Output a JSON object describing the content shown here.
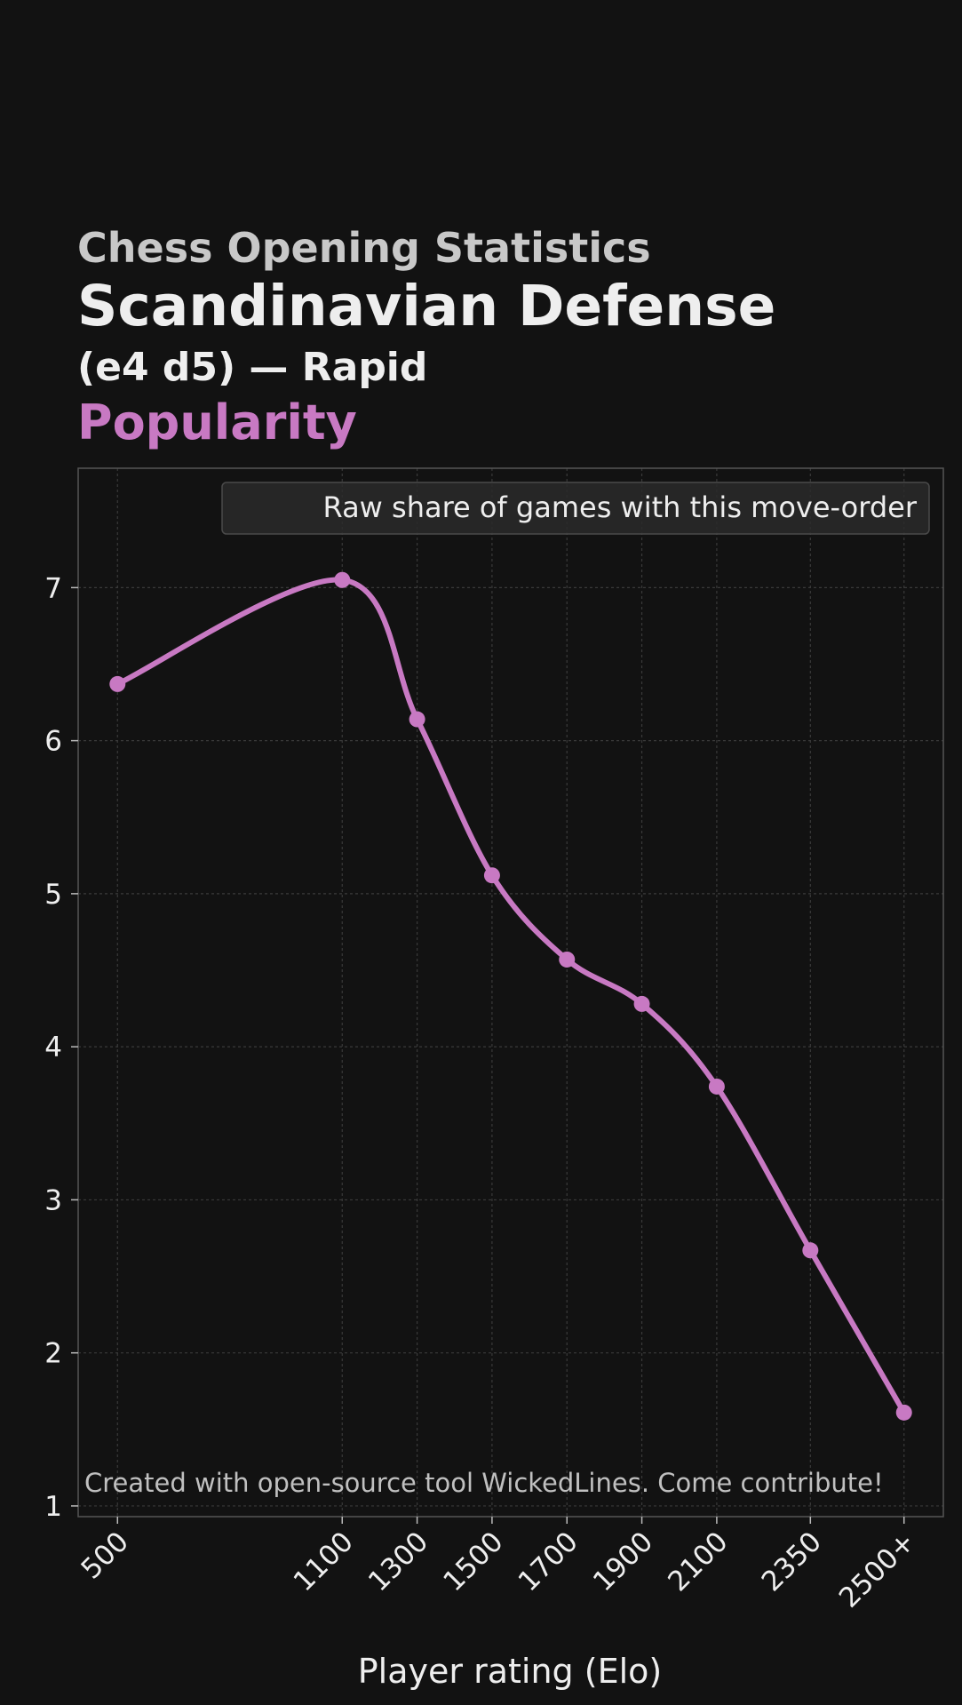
{
  "header": {
    "supertitle": "Chess Opening Statistics",
    "title": "Scandinavian Defense",
    "subtitle": "(e4 d5) — Rapid",
    "metric": "Popularity"
  },
  "colors": {
    "background": "#121212",
    "accent": "#c879c3",
    "text": "#eeeeee",
    "grid": "#3a3a3a"
  },
  "chart_data": {
    "type": "line",
    "title": "Popularity",
    "xlabel": "Player rating (Elo)",
    "ylabel": "",
    "categories": [
      "500",
      "1100",
      "1300",
      "1500",
      "1700",
      "1900",
      "2100",
      "2350",
      "2500+"
    ],
    "x_positions": [
      500,
      1100,
      1300,
      1500,
      1700,
      1900,
      2100,
      2350,
      2600
    ],
    "series": [
      {
        "name": "Raw share of games with this move-order",
        "values": [
          6.37,
          7.05,
          6.14,
          5.12,
          4.57,
          4.28,
          3.74,
          2.67,
          1.61
        ]
      }
    ],
    "ylim": [
      0.93,
      7.78
    ],
    "xlim": [
      395,
      2705
    ],
    "yticks": [
      1,
      2,
      3,
      4,
      5,
      6,
      7
    ],
    "grid": true,
    "smooth": true,
    "legend_position": "top-right",
    "footnote": "Created with open-source tool WickedLines. Come contribute!"
  }
}
